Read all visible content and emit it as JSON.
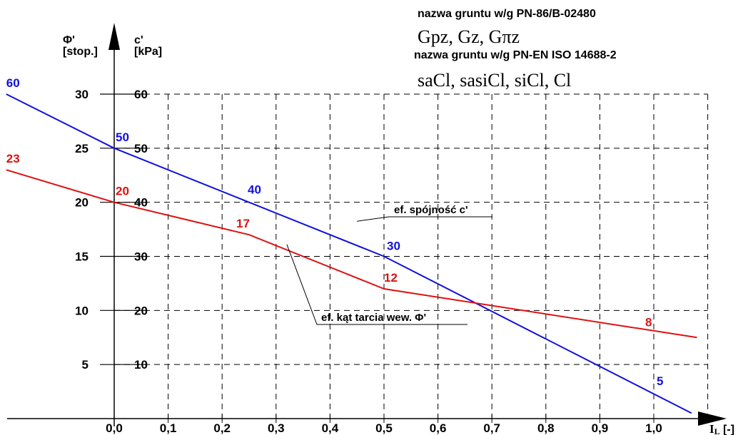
{
  "chart_data": {
    "type": "line",
    "title": "",
    "notes": {
      "line1": "nazwa gruntu w/g PN-86/B-02480",
      "line2": "Gpz, Gz, Gπz",
      "line3": "nazwa gruntu w/g PN-EN ISO 14688-2",
      "line4": "saCl, sasiCl, siCl, Cl"
    },
    "xlabel": "I",
    "xlabel_sub": "L",
    "xlabel_unit": " [-]",
    "ylabel_left": [
      "Φ'",
      "[stop.]"
    ],
    "ylabel_right": [
      "c'",
      "[kPa]"
    ],
    "xlim": [
      -0.21,
      1.12
    ],
    "x_ticks": [
      "0,0",
      "0,1",
      "0,2",
      "0,3",
      "0,4",
      "0,5",
      "0,6",
      "0,7",
      "0,8",
      "0,9",
      "1,0"
    ],
    "y_left_ticks": [
      "5",
      "10",
      "15",
      "20",
      "25",
      "30"
    ],
    "y_right_ticks": [
      "10",
      "20",
      "30",
      "40",
      "50",
      "60"
    ],
    "ylim_left": [
      0,
      35
    ],
    "ylim_right": [
      0,
      70
    ],
    "grid": true,
    "series": [
      {
        "name": "ef. spójność c'",
        "axis": "right",
        "color": "#1010e0",
        "x": [
          -0.2,
          0.0,
          0.25,
          0.5,
          1.07
        ],
        "y": [
          60,
          50,
          40,
          30,
          1
        ],
        "labels": [
          {
            "x": -0.2,
            "y": 60,
            "text": "60"
          },
          {
            "x": 0.0,
            "y": 50,
            "text": "50"
          },
          {
            "x": 0.25,
            "y": 40,
            "text": "40"
          },
          {
            "x": 0.5,
            "y": 30,
            "text": "30"
          },
          {
            "x": 1.0,
            "y": 5,
            "text": "5"
          }
        ]
      },
      {
        "name": "ef. kąt tarcia wew. Φ'",
        "axis": "left",
        "color": "#e01010",
        "x": [
          -0.2,
          0.0,
          0.25,
          0.5,
          1.08
        ],
        "y": [
          23,
          20,
          17,
          12,
          7.5
        ],
        "labels": [
          {
            "x": -0.2,
            "y": 23,
            "text": "23"
          },
          {
            "x": 0.0,
            "y": 20,
            "text": "20"
          },
          {
            "x": 0.25,
            "y": 17,
            "text": "17"
          },
          {
            "x": 0.5,
            "y": 12,
            "text": "12"
          },
          {
            "x": 1.0,
            "y": 8,
            "text": "8"
          }
        ]
      }
    ]
  }
}
